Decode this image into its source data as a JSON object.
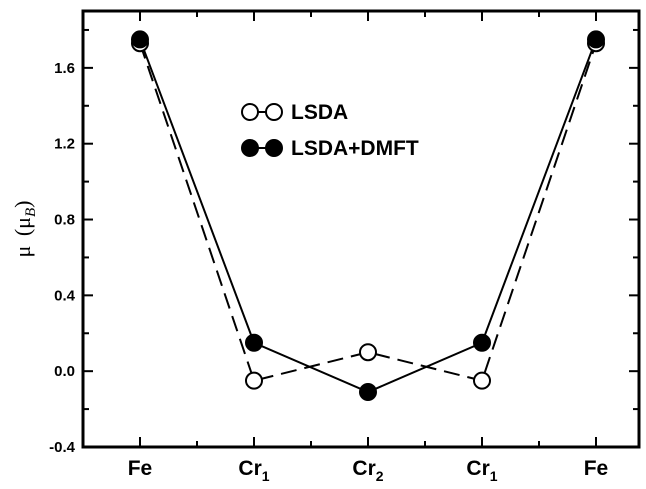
{
  "chart_data": {
    "type": "line",
    "categories": [
      {
        "base": "Fe",
        "sub": ""
      },
      {
        "base": "Cr",
        "sub": "1"
      },
      {
        "base": "Cr",
        "sub": "2"
      },
      {
        "base": "Cr",
        "sub": "1"
      },
      {
        "base": "Fe",
        "sub": ""
      }
    ],
    "ylabel": {
      "symbol": "μ",
      "unit_symbol": "μ",
      "unit_sub": "B"
    },
    "ylim": [
      -0.4,
      1.9
    ],
    "yticks": [
      "-0.4",
      "0.0",
      "0.4",
      "0.8",
      "1.2",
      "1.6"
    ],
    "ytick_values": [
      -0.4,
      0.0,
      0.4,
      0.8,
      1.2,
      1.6
    ],
    "series": [
      {
        "name": "LSDA",
        "style": "dashed",
        "marker": "open-circle",
        "values": [
          1.73,
          -0.05,
          0.1,
          -0.05,
          1.73
        ]
      },
      {
        "name": "LSDA+DMFT",
        "style": "solid",
        "marker": "filled-circle",
        "values": [
          1.75,
          0.15,
          -0.11,
          0.15,
          1.75
        ]
      }
    ],
    "legend_position": "upper-center",
    "grid": false,
    "colors": {
      "line": "#000000",
      "background": "#ffffff"
    }
  }
}
